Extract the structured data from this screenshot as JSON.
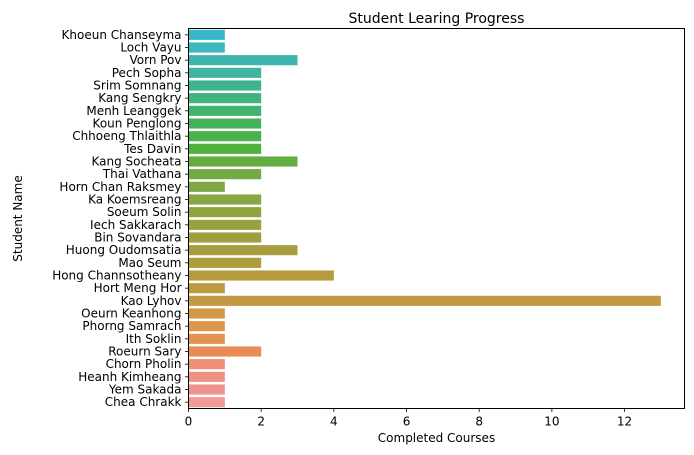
{
  "chart_data": {
    "type": "bar",
    "orientation": "horizontal",
    "title": "Student Learing Progress",
    "xlabel": "Completed Courses",
    "ylabel": "Student Name",
    "xlim": [
      0,
      13.65
    ],
    "xticks": [
      0,
      2,
      4,
      6,
      8,
      10,
      12
    ],
    "grid": false,
    "categories": [
      "Khoeun Chanseyma",
      "Loch Vayu",
      "Vorn Pov",
      "Pech Sopha",
      "Srim Somnang",
      "Kang Sengkry",
      "Menh Leanggek",
      "Koun Penglong",
      "Chhoeng Thlaithla",
      "Tes Davin",
      "Kang Socheata",
      "Thai Vathana",
      "Horn Chan Raksmey",
      "Ka Koemsreang",
      "Soeum Solin",
      "Iech Sakkarach",
      "Bin Sovandara",
      "Huong Oudomsatia",
      "Mao Seum",
      "Hong Channsotheany",
      "Hort Meng Hor",
      "Kao Lyhov",
      "Oeurn Keanhong",
      "Phorng Samrach",
      "Ith Soklin",
      "Roeurn Sary",
      "Chorn Pholin",
      "Heanh Kimheang",
      "Yem Sakada",
      "Chea Chrakk"
    ],
    "values": [
      1,
      1,
      3,
      2,
      2,
      2,
      2,
      2,
      2,
      2,
      3,
      2,
      1,
      2,
      2,
      2,
      2,
      3,
      2,
      4,
      1,
      13,
      1,
      1,
      1,
      2,
      1,
      1,
      1,
      1
    ],
    "colors": [
      "#39b7cd",
      "#3bb7be",
      "#3db5ad",
      "#3db59f",
      "#3fb38f",
      "#40b380",
      "#42b26f",
      "#44b25d",
      "#47b249",
      "#50b13f",
      "#63ad43",
      "#72aa44",
      "#7ea845",
      "#88a644",
      "#90a442",
      "#98a23f",
      "#a09f3c",
      "#a89e3f",
      "#ae9d3e",
      "#b49c3f",
      "#bb9a40",
      "#c29a42",
      "#d29944",
      "#dd964a",
      "#e5924e",
      "#e98b54",
      "#ee8e76",
      "#ef9184",
      "#ee938e",
      "#f09998"
    ]
  }
}
